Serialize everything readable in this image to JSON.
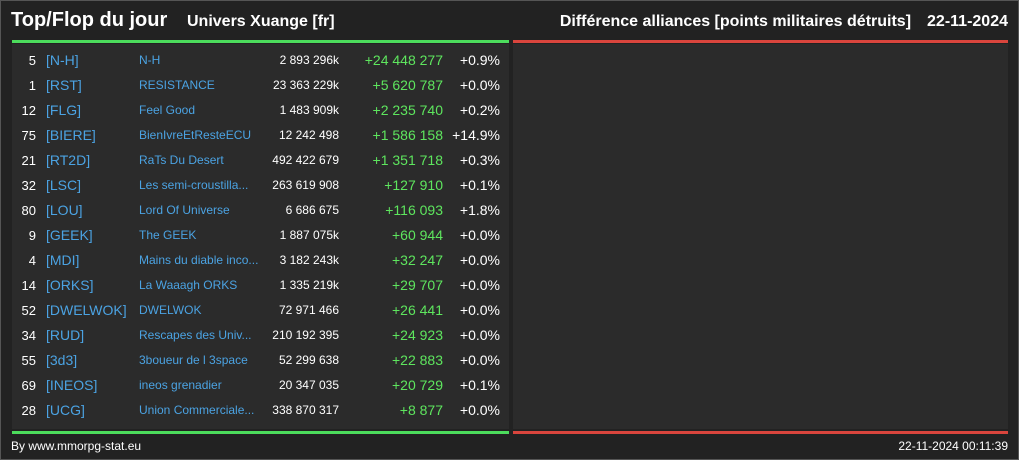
{
  "header": {
    "title": "Top/Flop du jour",
    "universe": "Univers Xuange [fr]",
    "subtitle": "Différence alliances [points militaires détruits]",
    "date": "22-11-2024"
  },
  "colors": {
    "top_bar": "#4cdc5c",
    "flop_bar": "#d9453d",
    "link": "#4ba3e3",
    "positive": "#5ee65e"
  },
  "rows": [
    {
      "rank": "5",
      "tag": "[N-H]",
      "name": "N-H",
      "points": "2 893 296k",
      "diff": "+24 448 277",
      "pct": "+0.9%"
    },
    {
      "rank": "1",
      "tag": "[RST]",
      "name": "RESISTANCE",
      "points": "23 363 229k",
      "diff": "+5 620 787",
      "pct": "+0.0%"
    },
    {
      "rank": "12",
      "tag": "[FLG]",
      "name": "Feel Good",
      "points": "1 483 909k",
      "diff": "+2 235 740",
      "pct": "+0.2%"
    },
    {
      "rank": "75",
      "tag": "[BIERE]",
      "name": "BienIvreEtResteECU",
      "points": "12 242 498",
      "diff": "+1 586 158",
      "pct": "+14.9%"
    },
    {
      "rank": "21",
      "tag": "[RT2D]",
      "name": "RaTs Du Desert",
      "points": "492 422 679",
      "diff": "+1 351 718",
      "pct": "+0.3%"
    },
    {
      "rank": "32",
      "tag": "[LSC]",
      "name": "Les semi-croustilla...",
      "points": "263 619 908",
      "diff": "+127 910",
      "pct": "+0.1%"
    },
    {
      "rank": "80",
      "tag": "[LOU]",
      "name": "Lord Of Universe",
      "points": "6 686 675",
      "diff": "+116 093",
      "pct": "+1.8%"
    },
    {
      "rank": "9",
      "tag": "[GEEK]",
      "name": "The GEEK",
      "points": "1 887 075k",
      "diff": "+60 944",
      "pct": "+0.0%"
    },
    {
      "rank": "4",
      "tag": "[MDI]",
      "name": "Mains du diable inco...",
      "points": "3 182 243k",
      "diff": "+32 247",
      "pct": "+0.0%"
    },
    {
      "rank": "14",
      "tag": "[ORKS]",
      "name": "La Waaagh ORKS",
      "points": "1 335 219k",
      "diff": "+29 707",
      "pct": "+0.0%"
    },
    {
      "rank": "52",
      "tag": "[DWELWOK]",
      "name": "DWELWOK",
      "points": "72 971 466",
      "diff": "+26 441",
      "pct": "+0.0%"
    },
    {
      "rank": "34",
      "tag": "[RUD]",
      "name": "Rescapes des Univ...",
      "points": "210 192 395",
      "diff": "+24 923",
      "pct": "+0.0%"
    },
    {
      "rank": "55",
      "tag": "[3d3]",
      "name": "3boueur de l 3space",
      "points": "52 299 638",
      "diff": "+22 883",
      "pct": "+0.0%"
    },
    {
      "rank": "69",
      "tag": "[INEOS]",
      "name": "ineos grenadier",
      "points": "20 347 035",
      "diff": "+20 729",
      "pct": "+0.1%"
    },
    {
      "rank": "28",
      "tag": "[UCG]",
      "name": "Union Commerciale...",
      "points": "338 870 317",
      "diff": "+8 877",
      "pct": "+0.0%"
    }
  ],
  "footer": {
    "credit": "By www.mmorpg-stat.eu",
    "timestamp": "22-11-2024 00:11:39"
  }
}
